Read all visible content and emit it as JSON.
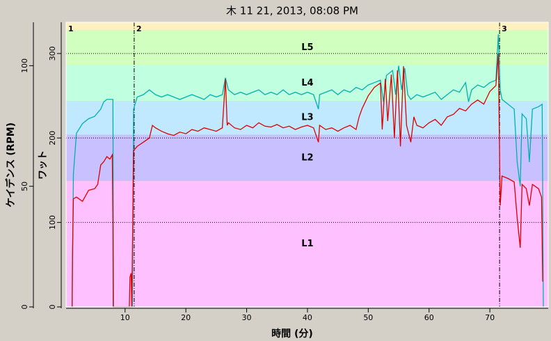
{
  "chart_data": {
    "type": "line",
    "title": "木 11 21, 2013, 08:08 PM",
    "xlabel": "時間 (分)",
    "ylabel": "ワット",
    "y2label": "ケイデンス (RPM)",
    "xlim": [
      0.3,
      79.6
    ],
    "xticks": [
      10,
      20,
      30,
      40,
      50,
      60,
      70
    ],
    "ylim": [
      0,
      337
    ],
    "yticks": [
      0,
      100,
      200,
      300
    ],
    "y2lim": [
      0,
      118
    ],
    "y2ticks": [
      0,
      50,
      100
    ],
    "grid": true,
    "zones": [
      {
        "name": "L1",
        "from": 0,
        "to": 149,
        "color": "#ffc0ff"
      },
      {
        "name": "L2",
        "from": 149,
        "to": 204,
        "color": "#c8c0ff"
      },
      {
        "name": "L3",
        "from": 204,
        "to": 244,
        "color": "#c0e8ff"
      },
      {
        "name": "L4",
        "from": 244,
        "to": 286,
        "color": "#c0ffe0"
      },
      {
        "name": "L5",
        "from": 286,
        "to": 328,
        "color": "#d0ffc0"
      }
    ],
    "laps": [
      {
        "label": "1",
        "x": 0.3
      },
      {
        "label": "2",
        "x": 11.5
      },
      {
        "label": "3",
        "x": 71.6
      }
    ],
    "series": [
      {
        "color": "#00b0b0",
        "axis": "y2",
        "x": [
          1.3,
          1.5,
          2,
          3,
          4,
          5,
          6,
          6.5,
          7,
          8,
          8.1,
          11.2,
          11.4,
          12,
          13,
          14,
          15,
          16,
          17,
          18,
          19,
          20,
          21,
          22,
          23,
          24,
          25,
          26,
          26.5,
          27,
          28,
          29,
          30,
          31,
          32,
          33,
          34,
          35,
          36,
          37,
          38,
          39,
          40,
          41,
          41.8,
          42,
          43,
          44,
          45,
          46,
          47,
          48,
          49,
          50,
          51,
          52,
          52.5,
          53,
          54,
          54.5,
          55,
          55.5,
          56,
          56.5,
          57,
          58,
          59,
          60,
          61,
          62,
          63,
          64,
          65,
          66,
          66.5,
          67,
          68,
          69,
          70,
          71,
          71.4,
          71.7,
          72,
          73,
          74,
          74.5,
          75,
          75.3,
          76,
          76.5,
          77,
          78,
          78.6,
          78.8
        ],
        "values": [
          0,
          55,
          72,
          76,
          78,
          79,
          82,
          85,
          86,
          86,
          0,
          0,
          82,
          87,
          88,
          90,
          88,
          87,
          88,
          87,
          86,
          87,
          88,
          87,
          86,
          88,
          87,
          88,
          95,
          90,
          88,
          89,
          88,
          89,
          90,
          88,
          89,
          88,
          90,
          88,
          89,
          88,
          89,
          88,
          82,
          88,
          89,
          90,
          88,
          90,
          89,
          91,
          90,
          92,
          93,
          94,
          85,
          96,
          98,
          88,
          100,
          90,
          99,
          88,
          86,
          88,
          87,
          88,
          89,
          86,
          88,
          90,
          89,
          93,
          85,
          90,
          92,
          91,
          93,
          94,
          113,
          90,
          86,
          84,
          82,
          60,
          50,
          80,
          78,
          60,
          82,
          83,
          84,
          0
        ]
      },
      {
        "color": "#dd0000",
        "axis": "y",
        "x": [
          1.3,
          1.35,
          1.5,
          2,
          3,
          4,
          5,
          5.5,
          6,
          6.5,
          7,
          7.5,
          7.9,
          8,
          8.05,
          10.7,
          10.8,
          11,
          11.1,
          11.4,
          12,
          13,
          14,
          14.5,
          15,
          16,
          17,
          18,
          19,
          20,
          21,
          22,
          23,
          24,
          25,
          26,
          26.5,
          26.8,
          27,
          28,
          29,
          30,
          31,
          32,
          33,
          34,
          35,
          36,
          37,
          38,
          39,
          40,
          41,
          41.8,
          42,
          43,
          44,
          45,
          46,
          47,
          48,
          48.5,
          49,
          50,
          51,
          52,
          52.3,
          52.8,
          53.2,
          53.8,
          54.3,
          54.8,
          55.3,
          55.8,
          56.3,
          57,
          57.5,
          58,
          59,
          60,
          61,
          62,
          63,
          64,
          65,
          66,
          67,
          68,
          69,
          70,
          71,
          71.4,
          71.7,
          72,
          73,
          74,
          74.5,
          75,
          75.3,
          76,
          76.5,
          77,
          78,
          78.5,
          78.7
        ],
        "values": [
          0,
          62,
          128,
          130,
          125,
          138,
          140,
          145,
          168,
          172,
          178,
          175,
          180,
          100,
          0,
          0,
          35,
          40,
          0,
          185,
          190,
          195,
          200,
          215,
          212,
          208,
          205,
          203,
          207,
          205,
          210,
          208,
          212,
          210,
          208,
          212,
          270,
          215,
          218,
          212,
          210,
          215,
          212,
          218,
          214,
          213,
          216,
          212,
          214,
          210,
          213,
          215,
          212,
          195,
          215,
          210,
          212,
          208,
          212,
          215,
          210,
          225,
          235,
          250,
          260,
          265,
          210,
          270,
          220,
          275,
          200,
          280,
          190,
          285,
          215,
          195,
          225,
          215,
          212,
          218,
          222,
          215,
          225,
          228,
          235,
          232,
          240,
          245,
          240,
          255,
          262,
          300,
          120,
          155,
          152,
          148,
          105,
          70,
          145,
          140,
          120,
          145,
          140,
          130,
          30
        ]
      }
    ]
  }
}
